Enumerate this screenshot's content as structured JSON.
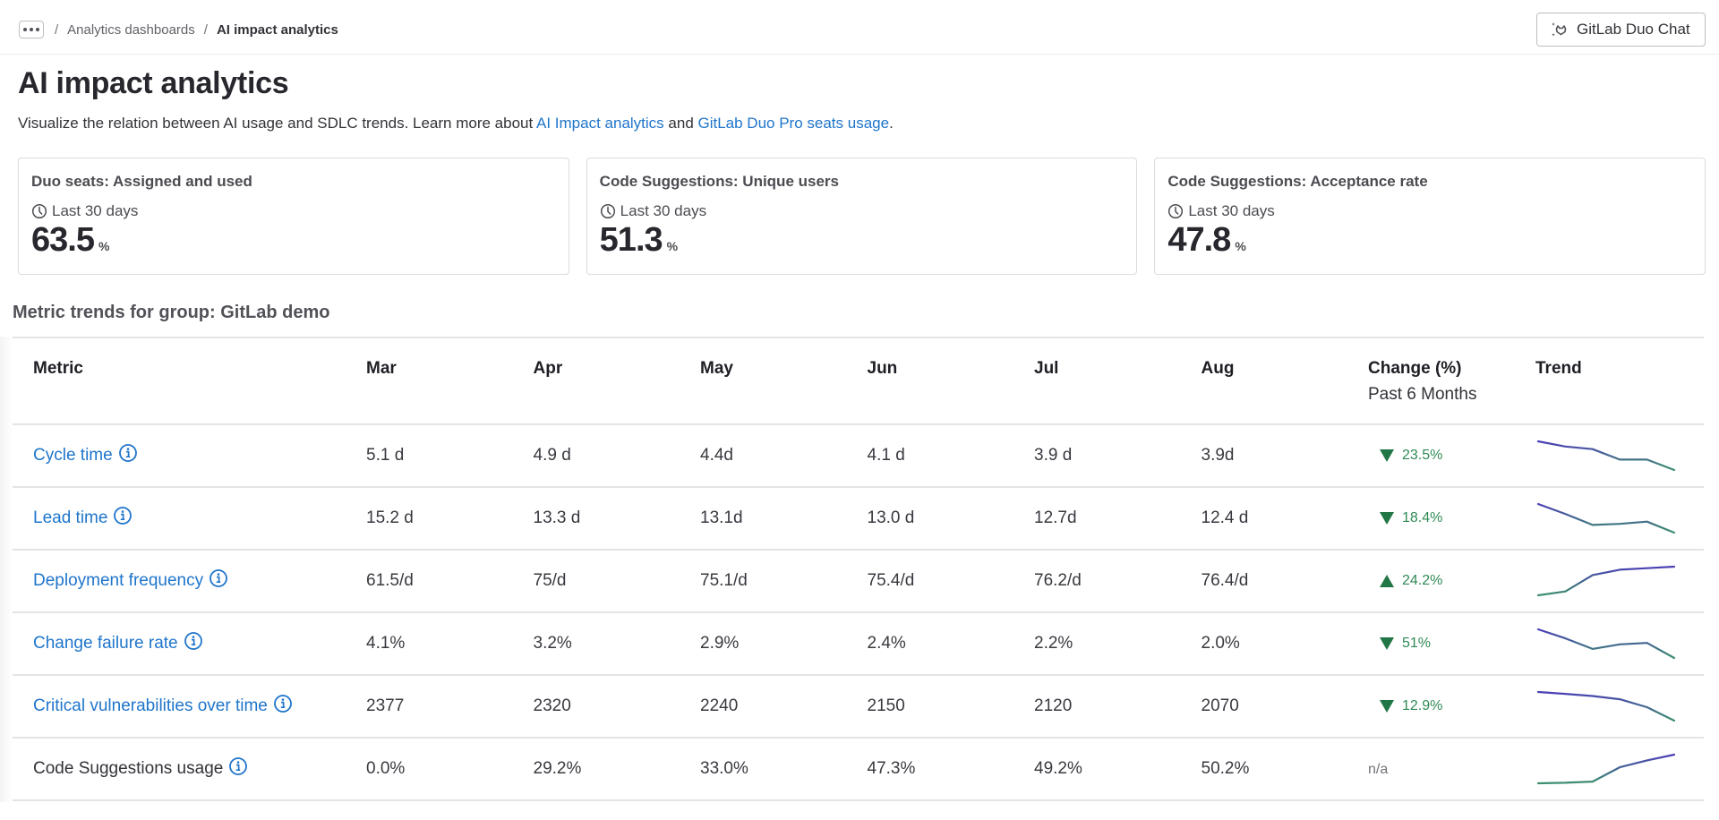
{
  "breadcrumb": {
    "more_label": "...",
    "items": [
      "Analytics dashboards",
      "AI impact analytics"
    ],
    "separator": "/"
  },
  "header": {
    "duo_chat_button": "GitLab Duo Chat",
    "duo_chat_icon": "duo-chat-sparkle-icon"
  },
  "page": {
    "title": "AI impact analytics",
    "description_prefix": "Visualize the relation between AI usage and SDLC trends. Learn more about ",
    "link1": "AI Impact analytics",
    "description_mid": " and ",
    "link2": "GitLab Duo Pro seats usage",
    "description_suffix": "."
  },
  "cards": [
    {
      "title": "Duo seats: Assigned and used",
      "period": "Last 30 days",
      "value": "63.5",
      "unit": "%"
    },
    {
      "title": "Code Suggestions: Unique users",
      "period": "Last 30 days",
      "value": "51.3",
      "unit": "%"
    },
    {
      "title": "Code Suggestions: Acceptance rate",
      "period": "Last 30 days",
      "value": "47.8",
      "unit": "%"
    }
  ],
  "metrics_table": {
    "section_title": "Metric trends for group: GitLab demo",
    "headers": {
      "metric": "Metric",
      "months": [
        "Mar",
        "Apr",
        "May",
        "Jun",
        "Jul",
        "Aug"
      ],
      "change": "Change (%)",
      "change_sub": "Past 6 Months",
      "trend": "Trend"
    },
    "rows": [
      {
        "metric": "Cycle time",
        "link": true,
        "values": [
          "5.1 d",
          "4.9 d",
          "4.4d",
          "4.1 d",
          "3.9 d",
          "3.9d"
        ],
        "change": "23.5%",
        "direction": "down",
        "trend": [
          5.1,
          4.9,
          4.8,
          4.4,
          4.4,
          4.0
        ]
      },
      {
        "metric": "Lead time",
        "link": true,
        "values": [
          "15.2 d",
          "13.3 d",
          "13.1d",
          "13.0 d",
          "12.7d",
          "12.4 d"
        ],
        "change": "18.4%",
        "direction": "down",
        "trend": [
          15.2,
          14.3,
          13.3,
          13.4,
          13.6,
          12.6
        ]
      },
      {
        "metric": "Deployment frequency",
        "link": true,
        "values": [
          "61.5/d",
          "75/d",
          "75.1/d",
          "75.4/d",
          "76.2/d",
          "76.4/d"
        ],
        "change": "24.2%",
        "direction": "up",
        "trend": [
          61.5,
          63.5,
          72.0,
          74.8,
          75.6,
          76.4
        ]
      },
      {
        "metric": "Change failure rate",
        "link": true,
        "values": [
          "4.1%",
          "3.2%",
          "2.9%",
          "2.4%",
          "2.2%",
          "2.0%"
        ],
        "change": "51%",
        "direction": "down",
        "trend": [
          4.1,
          3.5,
          2.8,
          3.1,
          3.2,
          2.2
        ]
      },
      {
        "metric": "Critical vulnerabilities over time",
        "link": true,
        "values": [
          "2377",
          "2320",
          "2240",
          "2150",
          "2120",
          "2070"
        ],
        "change": "12.9%",
        "direction": "down",
        "trend": [
          2377,
          2370,
          2362,
          2350,
          2320,
          2270
        ]
      },
      {
        "metric": "Code Suggestions usage",
        "link": false,
        "values": [
          "0.0%",
          "29.2%",
          "33.0%",
          "47.3%",
          "49.2%",
          "50.2%"
        ],
        "change": "n/a",
        "direction": "none",
        "trend": [
          0,
          1,
          3,
          28,
          40,
          50
        ]
      }
    ]
  },
  "colors": {
    "link": "#1f75cb",
    "positive": "#2f8a55",
    "positive_icon": "#217645",
    "sparkline_start": "#4b3fb5",
    "sparkline_end": "#3d8f6e",
    "border": "#dcdcde"
  }
}
